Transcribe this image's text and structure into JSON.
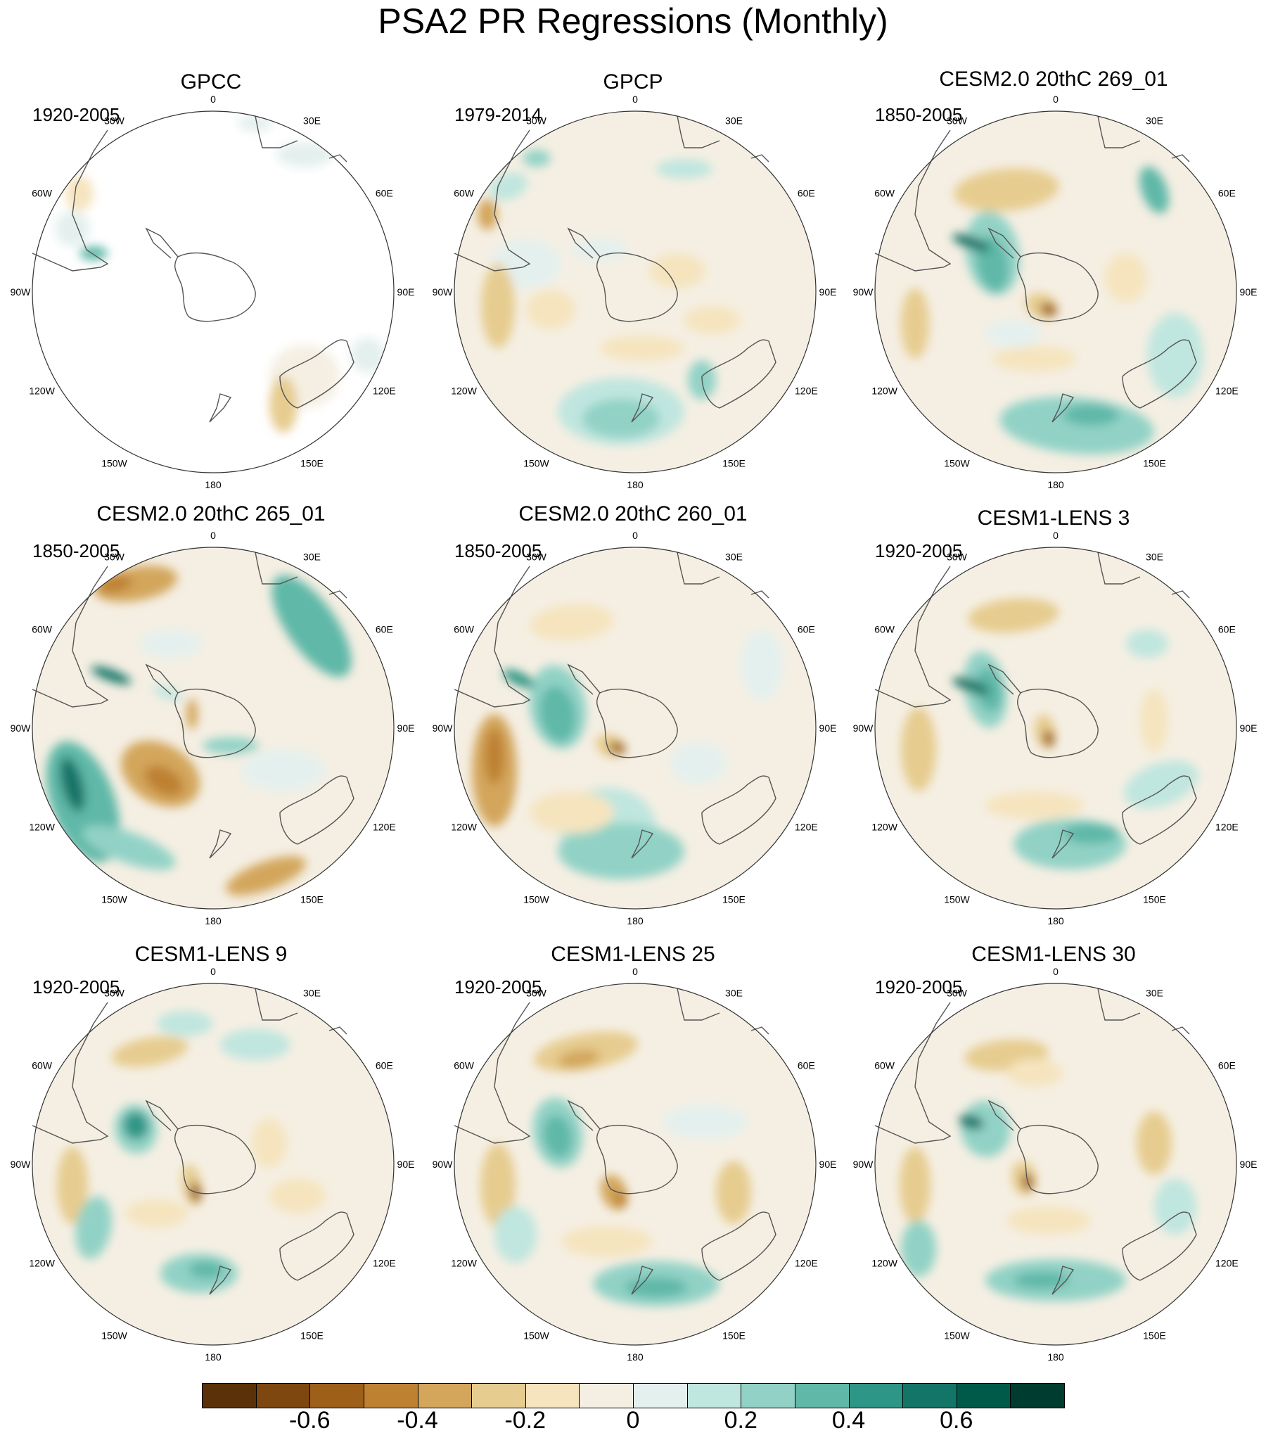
{
  "title": "PSA2 PR Regressions (Monthly)",
  "colors": {
    "ocean_default": "#f5efe3",
    "coast": "#555555",
    "rim": "#333333",
    "palette": [
      "#5a3108",
      "#7d470f",
      "#9e5f19",
      "#be8131",
      "#d3a65b",
      "#e6cc8f",
      "#f5e4be",
      "#f5efe3",
      "#e4f0ee",
      "#bfe6df",
      "#92d2c6",
      "#5fb8a8",
      "#2e9686",
      "#127567",
      "#005a4a",
      "#003c30"
    ]
  },
  "longitude_labels": [
    "0",
    "30E",
    "60E",
    "90E",
    "120E",
    "150E",
    "180",
    "150W",
    "120W",
    "90W",
    "60W",
    "30W"
  ],
  "panels": [
    {
      "title": "GPCC",
      "years": "1920-2005",
      "type": "gpcc"
    },
    {
      "title": "GPCP",
      "years": "1979-2014",
      "type": "full"
    },
    {
      "title": "CESM2.0 20thC 269_01",
      "years": "1850-2005",
      "type": "full"
    },
    {
      "title": "CESM2.0 20thC 265_01",
      "years": "1850-2005",
      "type": "full"
    },
    {
      "title": "CESM2.0 20thC 260_01",
      "years": "1850-2005",
      "type": "full"
    },
    {
      "title": "CESM1-LENS 3",
      "years": "1920-2005",
      "type": "full"
    },
    {
      "title": "CESM1-LENS 9",
      "years": "1920-2005",
      "type": "full"
    },
    {
      "title": "CESM1-LENS 25",
      "years": "1920-2005",
      "type": "full"
    },
    {
      "title": "CESM1-LENS 30",
      "years": "1920-2005",
      "type": "full"
    }
  ],
  "colorbar": {
    "tick_labels": [
      "-0.6",
      "-0.4",
      "-0.2",
      "0",
      "0.2",
      "0.4",
      "0.6"
    ],
    "tick_values": [
      -0.6,
      -0.4,
      -0.2,
      0,
      0.2,
      0.4,
      0.6
    ],
    "min": -0.8,
    "max": 0.8
  }
}
